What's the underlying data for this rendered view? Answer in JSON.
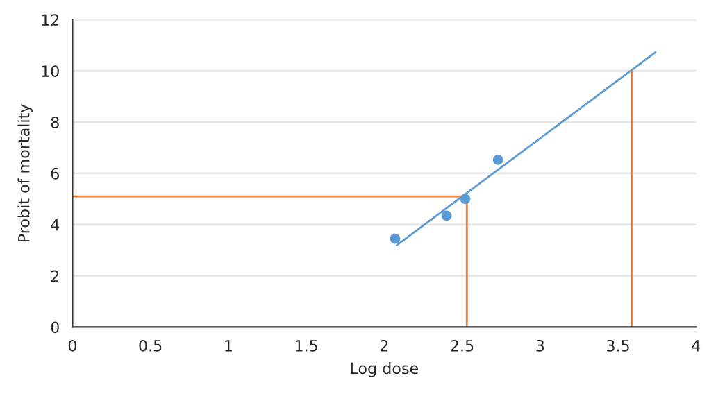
{
  "chart_data": {
    "type": "scatter",
    "xlabel": "Log dose",
    "ylabel": "Probit of mortality",
    "series": [
      {
        "color": "#5b9bd5",
        "x": [
          2.07,
          2.4,
          2.52,
          2.73
        ],
        "values": [
          3.45,
          4.35,
          5.0,
          6.53
        ],
        "marker": "circle"
      },
      {
        "type": "line",
        "color": "#5b9bd5",
        "x": [
          2.08,
          3.74
        ],
        "values": [
          3.19,
          10.73
        ]
      },
      {
        "type": "line",
        "color": "#ed7d31",
        "x": [
          0,
          2.53,
          2.53
        ],
        "values": [
          5.1,
          5.1,
          0
        ]
      },
      {
        "type": "line",
        "color": "#ed7d31",
        "x": [
          3.59,
          3.59
        ],
        "values": [
          0,
          10.0
        ]
      }
    ],
    "xlim": [
      0,
      4
    ],
    "xticks": [
      0,
      0.5,
      1,
      1.5,
      2,
      2.5,
      3,
      3.5,
      4
    ],
    "ylim": [
      0,
      12
    ],
    "yticks": [
      0,
      2,
      4,
      6,
      8,
      10,
      12
    ],
    "grid": "y"
  }
}
